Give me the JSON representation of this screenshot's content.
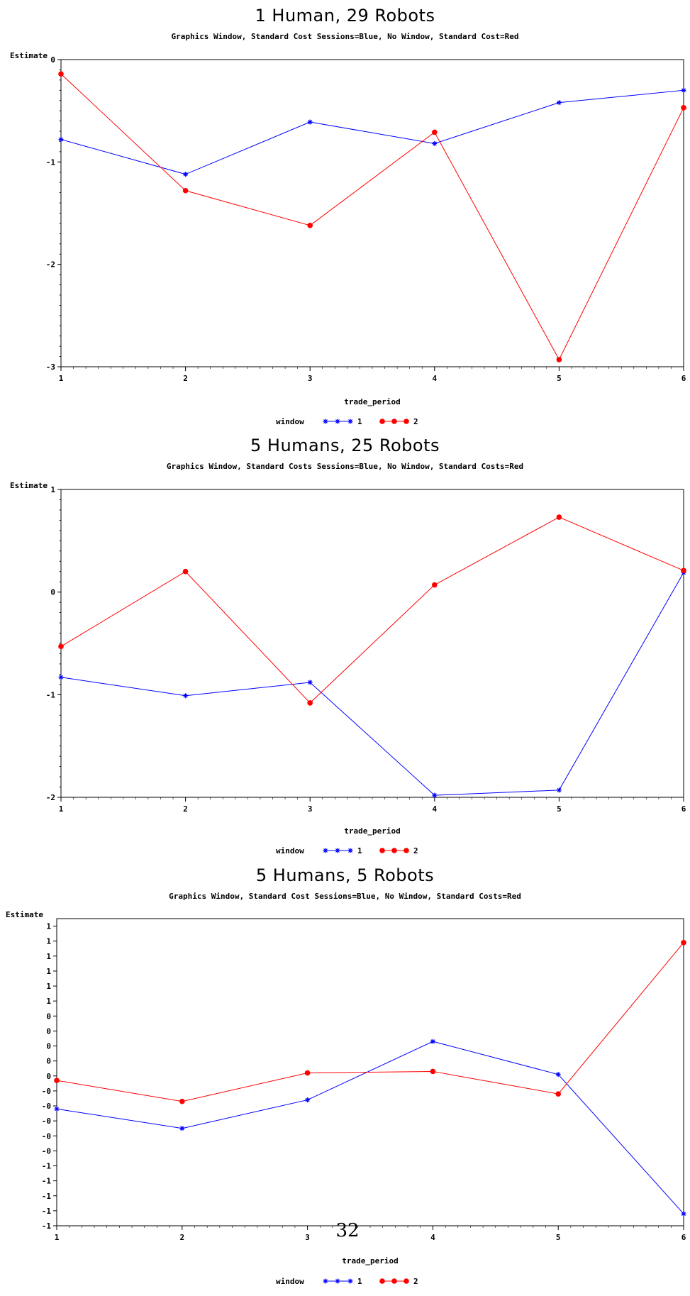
{
  "colors": {
    "series1": "#0000ff",
    "series2": "#ff0000"
  },
  "page_number": "32",
  "chart_data": [
    {
      "type": "line",
      "title": "1 Human, 29 Robots",
      "subtitle": "Graphics Window, Standard Cost Sessions=Blue, No Window, Standard Cost=Red",
      "ylabel": "Estimate",
      "xlabel": "trade_period",
      "legend_title": "window",
      "x": [
        1,
        2,
        3,
        4,
        5,
        6
      ],
      "xlim": [
        1,
        6
      ],
      "ylim": [
        -3,
        0
      ],
      "yticks": [
        0,
        -1,
        -2,
        -3
      ],
      "ytick_labels": [
        "0",
        "-1",
        "-2",
        "-3"
      ],
      "grid": false,
      "legend_position": "bottom",
      "series": [
        {
          "name": "1",
          "color": "#0000ff",
          "marker": "star",
          "values": [
            -0.78,
            -1.12,
            -0.61,
            -0.82,
            -0.42,
            -0.3
          ]
        },
        {
          "name": "2",
          "color": "#ff0000",
          "marker": "dot",
          "values": [
            -0.14,
            -1.28,
            -1.62,
            -0.71,
            -2.93,
            -0.47
          ]
        }
      ]
    },
    {
      "type": "line",
      "title": "5 Humans, 25 Robots",
      "subtitle": "Graphics Window, Standard Costs Sessions=Blue, No Window, Standard Costs=Red",
      "ylabel": "Estimate",
      "xlabel": "trade_period",
      "legend_title": "window",
      "x": [
        1,
        2,
        3,
        4,
        5,
        6
      ],
      "xlim": [
        1,
        6
      ],
      "ylim": [
        -2,
        1
      ],
      "yticks": [
        1,
        0,
        -1,
        -2
      ],
      "ytick_labels": [
        "1",
        "0",
        "-1",
        "-2"
      ],
      "grid": false,
      "legend_position": "bottom",
      "series": [
        {
          "name": "1",
          "color": "#0000ff",
          "marker": "star",
          "values": [
            -0.83,
            -1.01,
            -0.88,
            -1.98,
            -1.93,
            0.19
          ]
        },
        {
          "name": "2",
          "color": "#ff0000",
          "marker": "dot",
          "values": [
            -0.53,
            0.2,
            -1.08,
            0.07,
            0.73,
            0.21
          ]
        }
      ]
    },
    {
      "type": "line",
      "title": "5 Humans, 5 Robots",
      "subtitle": "Graphics Window, Standard Cost Sessions=Blue, No Window, Standard Costs=Red",
      "ylabel": "Estimate",
      "xlabel": "trade_period",
      "legend_title": "window",
      "x": [
        1,
        2,
        3,
        4,
        5,
        6
      ],
      "xlim": [
        1,
        6
      ],
      "ylim": [
        -1.0,
        1.05
      ],
      "yticks": [
        1.0,
        0.9,
        0.8,
        0.7,
        0.6,
        0.5,
        0.4,
        0.3,
        0.2,
        0.1,
        0.0,
        -0.1,
        -0.2,
        -0.3,
        -0.4,
        -0.5,
        -0.6,
        -0.7,
        -0.8,
        -0.9,
        -1.0
      ],
      "ytick_labels": [
        "1",
        "1",
        "1",
        "1",
        "1",
        "1",
        "0",
        "0",
        "0",
        "0",
        "0",
        "-0",
        "-0",
        "-0",
        "-0",
        "-0",
        "-1",
        "-1",
        "-1",
        "-1",
        "-1"
      ],
      "grid": false,
      "legend_position": "bottom",
      "series": [
        {
          "name": "1",
          "color": "#0000ff",
          "marker": "star",
          "values": [
            -0.22,
            -0.35,
            -0.16,
            0.23,
            0.01,
            -0.92
          ]
        },
        {
          "name": "2",
          "color": "#ff0000",
          "marker": "dot",
          "values": [
            -0.03,
            -0.17,
            0.02,
            0.03,
            -0.12,
            0.89
          ]
        }
      ]
    }
  ]
}
